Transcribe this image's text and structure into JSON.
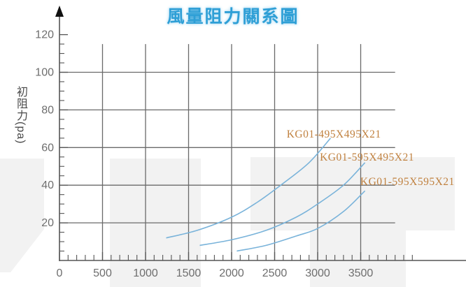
{
  "title": "風量阻力關系圖",
  "axis": {
    "y_label": "初阻力(pa)"
  },
  "chart_data": {
    "type": "line",
    "title": "風量阻力關系圖",
    "xlabel": "",
    "ylabel": "初阻力 (pa)",
    "xlim": [
      0,
      4250
    ],
    "ylim": [
      0,
      128
    ],
    "x_major_ticks": [
      0,
      500,
      1000,
      1500,
      2000,
      2500,
      3000,
      3500
    ],
    "x_minor_step": 100,
    "x_minor_max": 4100,
    "y_major_ticks": [
      20,
      40,
      60,
      80,
      100,
      120
    ],
    "y_minor_step": 5,
    "y_minor_max": 115,
    "h_gridlines": {
      "values": [
        20,
        40,
        60,
        80,
        100
      ],
      "x_end": 3900
    },
    "v_gridlines": {
      "values": [
        500,
        1000,
        1500,
        2000,
        2500,
        3000,
        3500
      ],
      "y_end": 115
    },
    "grid": true,
    "legend_position": "labels-at-curve-ends",
    "colors": {
      "curve": "#79b3da",
      "grid": "#6a6a6a",
      "axis": "#555555",
      "tick_label": "#6e6e6e",
      "title": "#2e9fd6",
      "series_label": "#c0813f"
    },
    "series": [
      {
        "name": "KG01-495X495X21",
        "points": [
          [
            1240,
            12
          ],
          [
            1600,
            16
          ],
          [
            2000,
            23
          ],
          [
            2300,
            31
          ],
          [
            2600,
            41
          ],
          [
            2900,
            52
          ],
          [
            3150,
            65
          ]
        ],
        "label_anchor": [
          2640,
          70
        ]
      },
      {
        "name": "KG01-595X495X21",
        "points": [
          [
            1630,
            8
          ],
          [
            2000,
            11
          ],
          [
            2400,
            16
          ],
          [
            2750,
            23
          ],
          [
            3000,
            30
          ],
          [
            3300,
            40
          ],
          [
            3550,
            52
          ]
        ],
        "label_anchor": [
          3025,
          58
        ]
      },
      {
        "name": "KG01-595X595X21",
        "points": [
          [
            2060,
            5
          ],
          [
            2400,
            8
          ],
          [
            2750,
            13
          ],
          [
            3000,
            17
          ],
          [
            3300,
            26
          ],
          [
            3550,
            37
          ]
        ],
        "label_anchor": [
          3495,
          45
        ]
      }
    ]
  }
}
